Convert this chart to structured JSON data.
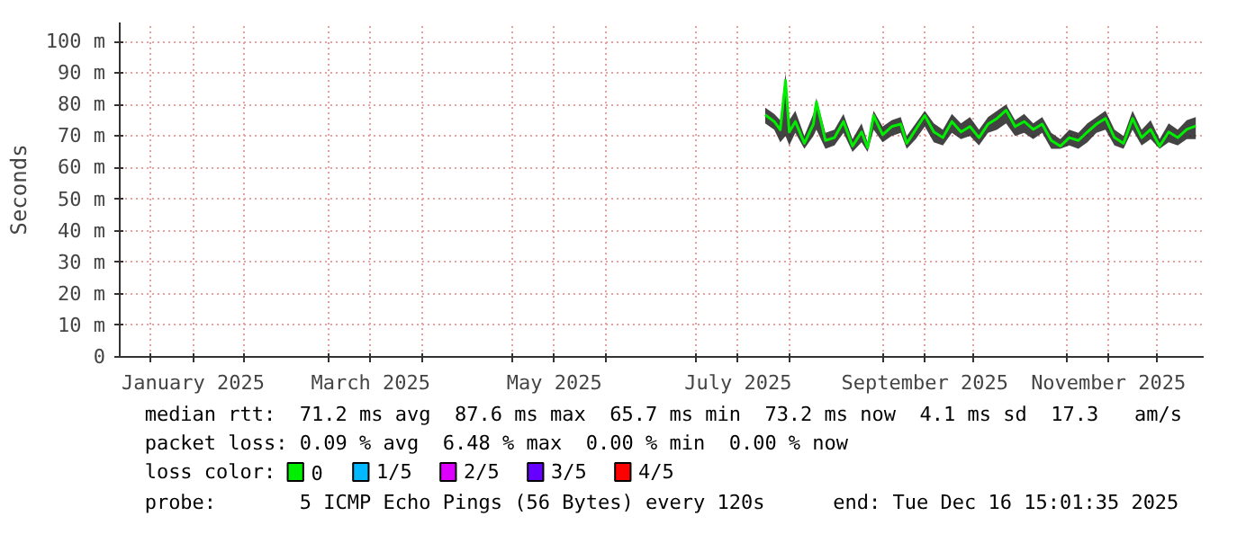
{
  "chart_data": {
    "type": "line",
    "ylabel": "Seconds",
    "x": [
      "2025-07-24",
      "2025-07-27",
      "2025-07-29",
      "2025-07-30T18:00",
      "2025-08-01",
      "2025-08-03",
      "2025-08-06",
      "2025-08-09",
      "2025-08-10",
      "2025-08-13",
      "2025-08-16",
      "2025-08-19",
      "2025-08-22",
      "2025-08-25",
      "2025-08-27",
      "2025-08-29",
      "2025-09-01",
      "2025-09-04",
      "2025-09-07",
      "2025-09-09",
      "2025-09-12",
      "2025-09-15",
      "2025-09-18",
      "2025-09-21",
      "2025-09-24",
      "2025-09-27",
      "2025-09-30",
      "2025-10-03",
      "2025-10-06",
      "2025-10-09",
      "2025-10-12",
      "2025-10-15",
      "2025-10-18",
      "2025-10-21",
      "2025-10-24",
      "2025-10-27",
      "2025-10-30",
      "2025-11-02",
      "2025-11-05",
      "2025-11-08",
      "2025-11-11",
      "2025-11-14",
      "2025-11-17",
      "2025-11-20",
      "2025-11-23",
      "2025-11-26",
      "2025-11-29",
      "2025-12-02",
      "2025-12-05",
      "2025-12-08",
      "2025-12-11",
      "2025-12-14"
    ],
    "series": [
      {
        "name": "0",
        "color": "#00ee00",
        "values": [
          76.7,
          74.6,
          72,
          87.6,
          71.3,
          74.6,
          67.7,
          73.8,
          80.8,
          68.6,
          69.5,
          74.6,
          66.8,
          71.3,
          66.3,
          76.5,
          70.4,
          73,
          73.8,
          67.7,
          72.1,
          76.5,
          71.3,
          69.5,
          74.6,
          71.3,
          73,
          69.5,
          73.8,
          75.6,
          78.2,
          73,
          74.6,
          72.1,
          73.8,
          68.6,
          66.8,
          69.5,
          68.6,
          71.3,
          73.8,
          75.6,
          69.5,
          67.7,
          75.6,
          69.5,
          72.1,
          66.8,
          71.3,
          69.5,
          72.1,
          73.2
        ],
        "lower": [
          74,
          72,
          68,
          70,
          67,
          71,
          66,
          70,
          72,
          66,
          67,
          71,
          65,
          68,
          65,
          72,
          68,
          70,
          71,
          66,
          69,
          73,
          68,
          67,
          71,
          69,
          70,
          67,
          71,
          72,
          74,
          70,
          71,
          69,
          71,
          66,
          66,
          67,
          66,
          68,
          71,
          72,
          67,
          66,
          72,
          67,
          69,
          66,
          68,
          67,
          69,
          69
        ],
        "upper": [
          79,
          77,
          75,
          90,
          75,
          78,
          70,
          77,
          82,
          71,
          72,
          77,
          69,
          74,
          68,
          78,
          73,
          75,
          76,
          70,
          74,
          78,
          74,
          72,
          77,
          74,
          76,
          72,
          76,
          78,
          80,
          75,
          77,
          74,
          76,
          71,
          69,
          72,
          71,
          74,
          76,
          78,
          72,
          70,
          78,
          72,
          75,
          69,
          74,
          72,
          75,
          76
        ]
      },
      {
        "name": "1/5",
        "color": "#00b8ff",
        "values": [
          null,
          null,
          null,
          null,
          null,
          null,
          null,
          null,
          null,
          null,
          null,
          null,
          null,
          null,
          null,
          null,
          null,
          null,
          null,
          null,
          null,
          null,
          null,
          null,
          null,
          null,
          null,
          null,
          null,
          null,
          null,
          null,
          null,
          null,
          null,
          null,
          null,
          null,
          null,
          null,
          null,
          null,
          null,
          null,
          null,
          null,
          null,
          null,
          null,
          null,
          null,
          null
        ]
      },
      {
        "name": "2/5",
        "color": "#dd00ff",
        "values": [
          null,
          null,
          null,
          null,
          null,
          null,
          null,
          null,
          null,
          null,
          null,
          null,
          null,
          null,
          null,
          null,
          null,
          null,
          null,
          null,
          null,
          null,
          null,
          null,
          null,
          null,
          null,
          null,
          null,
          null,
          null,
          null,
          null,
          null,
          null,
          null,
          null,
          null,
          null,
          null,
          null,
          null,
          null,
          null,
          null,
          null,
          null,
          null,
          null,
          null,
          null,
          null
        ]
      },
      {
        "name": "3/5",
        "color": "#6600ff",
        "values": [
          null,
          null,
          null,
          null,
          null,
          null,
          null,
          null,
          null,
          null,
          null,
          null,
          null,
          null,
          null,
          null,
          null,
          null,
          null,
          null,
          null,
          null,
          null,
          null,
          null,
          null,
          null,
          null,
          null,
          null,
          null,
          null,
          null,
          null,
          null,
          null,
          null,
          null,
          null,
          null,
          null,
          null,
          null,
          null,
          null,
          null,
          null,
          null,
          null,
          null,
          null,
          null
        ]
      },
      {
        "name": "4/5",
        "color": "#ff0000",
        "values": [
          null,
          null,
          null,
          null,
          null,
          null,
          null,
          null,
          null,
          null,
          null,
          null,
          null,
          null,
          null,
          null,
          null,
          null,
          null,
          null,
          null,
          null,
          null,
          null,
          null,
          null,
          null,
          null,
          null,
          null,
          null,
          null,
          null,
          null,
          null,
          null,
          null,
          null,
          null,
          null,
          null,
          null,
          null,
          null,
          null,
          null,
          null,
          null,
          null,
          null,
          null,
          null
        ]
      }
    ],
    "legend_title": "loss color:",
    "legend": "bottom",
    "xlim": [
      "2024-12-21T15:01",
      "2025-12-16T15:01"
    ],
    "xticks": [
      {
        "value": "2025-01-01",
        "label": null
      },
      {
        "value": "2025-01-15",
        "label": "January 2025"
      },
      {
        "value": "2025-02-01",
        "label": null
      },
      {
        "value": "2025-03-01",
        "label": null
      },
      {
        "value": "2025-03-15",
        "label": "March 2025"
      },
      {
        "value": "2025-04-01",
        "label": null
      },
      {
        "value": "2025-05-01",
        "label": null
      },
      {
        "value": "2025-05-15",
        "label": "May 2025"
      },
      {
        "value": "2025-06-01",
        "label": null
      },
      {
        "value": "2025-07-01",
        "label": null
      },
      {
        "value": "2025-07-15",
        "label": "July 2025"
      },
      {
        "value": "2025-08-01",
        "label": null
      },
      {
        "value": "2025-09-01",
        "label": null
      },
      {
        "value": "2025-09-15",
        "label": "September 2025"
      },
      {
        "value": "2025-10-01",
        "label": null
      },
      {
        "value": "2025-11-01",
        "label": null
      },
      {
        "value": "2025-11-15",
        "label": "November 2025"
      },
      {
        "value": "2025-12-01",
        "label": null
      }
    ],
    "ylim": [
      0,
      106
    ],
    "yticks": [
      0,
      {
        "value": 10,
        "label": "10 m"
      },
      {
        "value": 20,
        "label": "20 m"
      },
      {
        "value": 30,
        "label": "30 m"
      },
      {
        "value": 40,
        "label": "40 m"
      },
      {
        "value": 50,
        "label": "50 m"
      },
      {
        "value": 60,
        "label": "60 m"
      },
      {
        "value": 70,
        "label": "70 m"
      },
      {
        "value": 80,
        "label": "80 m"
      },
      {
        "value": 90,
        "label": "90 m"
      },
      {
        "value": 100,
        "label": "100 m"
      }
    ],
    "grid": true,
    "annotations": [
      "median rtt:  71.2 ms avg  87.6 ms max  65.7 ms min  73.2 ms now  4.1 ms sd  17.3   am/s",
      "packet loss: 0.09 % avg  6.48 % max  0.00 % min  0.00 % now",
      "probe:       5 ICMP Echo Pings (56 Bytes) every 120s",
      "end: Tue Dec 16 15:01:35 2025"
    ]
  }
}
